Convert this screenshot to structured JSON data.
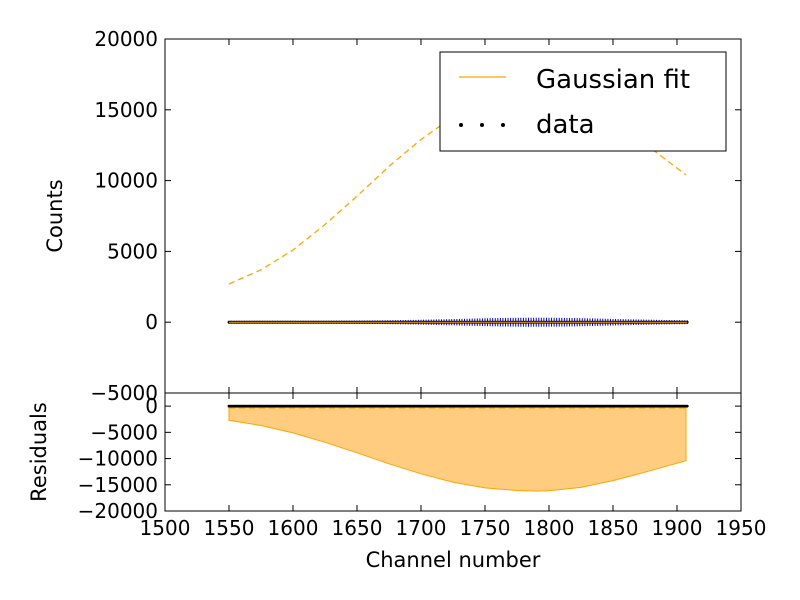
{
  "chart_data": [
    {
      "panel": "main",
      "type": "line",
      "xlabel": "",
      "ylabel": "Counts",
      "xlim": [
        1500,
        1950
      ],
      "ylim": [
        -5000,
        20000
      ],
      "yticks": [
        -5000,
        0,
        5000,
        10000,
        15000,
        20000
      ],
      "ytick_labels": [
        "−5000",
        "0",
        "5000",
        "10000",
        "15000",
        "20000"
      ],
      "legend": {
        "placement": "top-right",
        "entries": [
          "Gaussian fit",
          "data"
        ]
      },
      "series": [
        {
          "name": "Gaussian fit",
          "style": "dashed",
          "color": "#ffa500",
          "x": [
            1550,
            1575,
            1600,
            1625,
            1650,
            1675,
            1700,
            1725,
            1750,
            1775,
            1790,
            1800,
            1825,
            1850,
            1875,
            1907
          ],
          "y": [
            2700,
            3700,
            5100,
            6900,
            8900,
            11000,
            12900,
            14500,
            15600,
            16100,
            16200,
            16150,
            15500,
            14200,
            12600,
            10400
          ]
        },
        {
          "name": "data",
          "style": "points",
          "color": "#000000",
          "errorbar_color": "#0000cc",
          "x_range": [
            1550,
            1908
          ],
          "y": 0
        },
        {
          "name": "",
          "style": "line",
          "color": "#ffa500",
          "x": [
            1550,
            1908
          ],
          "y": [
            0,
            0
          ]
        }
      ]
    },
    {
      "panel": "residuals",
      "type": "area",
      "xlabel": "Channel number",
      "ylabel": "Residuals",
      "xlim": [
        1500,
        1950
      ],
      "ylim": [
        -20000,
        2500
      ],
      "xticks": [
        1500,
        1550,
        1600,
        1650,
        1700,
        1750,
        1800,
        1850,
        1900,
        1950
      ],
      "xtick_labels": [
        "1500",
        "1550",
        "1600",
        "1650",
        "1700",
        "1750",
        "1800",
        "1850",
        "1900",
        "1950"
      ],
      "yticks": [
        -20000,
        -15000,
        -10000,
        -5000,
        0
      ],
      "ytick_labels": [
        "−20000",
        "−15000",
        "−10000",
        "−5000",
        "0"
      ],
      "series": [
        {
          "name": "",
          "style": "filled",
          "fill_color": "#ffcc80",
          "edge_color": "#ffa500",
          "x": [
            1550,
            1575,
            1600,
            1625,
            1650,
            1675,
            1700,
            1725,
            1750,
            1775,
            1790,
            1800,
            1825,
            1850,
            1875,
            1907
          ],
          "y": [
            -2700,
            -3700,
            -5100,
            -6900,
            -8900,
            -11000,
            -12900,
            -14500,
            -15600,
            -16100,
            -16200,
            -16150,
            -15500,
            -14200,
            -12600,
            -10400
          ]
        },
        {
          "name": "",
          "style": "points",
          "color": "#000000",
          "x_range": [
            1550,
            1908
          ],
          "y": 0
        }
      ]
    }
  ]
}
